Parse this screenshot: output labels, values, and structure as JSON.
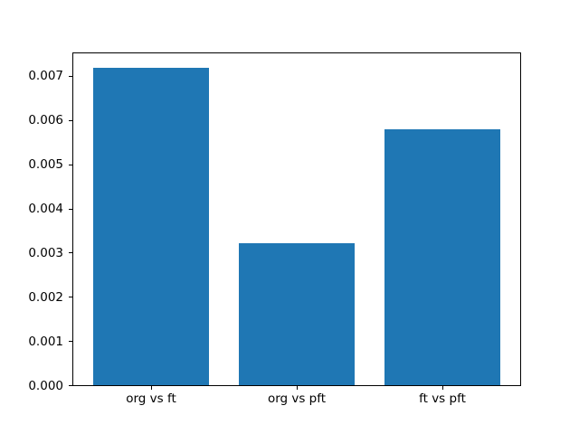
{
  "chart_data": {
    "type": "bar",
    "categories": [
      "org vs ft",
      "org vs pft",
      "ft vs pft"
    ],
    "values": [
      0.00719,
      0.00322,
      0.0058
    ],
    "title": "",
    "xlabel": "",
    "ylabel": "",
    "ylim": [
      0,
      0.00755
    ],
    "ytick_values": [
      0,
      0.001,
      0.002,
      0.003,
      0.004,
      0.005,
      0.006,
      0.007
    ],
    "ytick_labels": [
      "0.000",
      "0.001",
      "0.002",
      "0.003",
      "0.004",
      "0.005",
      "0.006",
      "0.007"
    ],
    "bar_color": "#1f77b4",
    "background_color": "#ffffff",
    "spine_color": "#000000",
    "grid": false,
    "legend": false,
    "bar_width_fraction": 0.8
  }
}
